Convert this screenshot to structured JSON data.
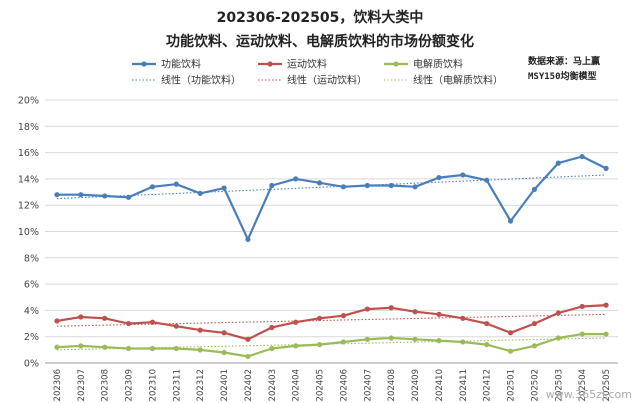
{
  "chart_data": {
    "type": "line",
    "title": "202306-202505，饮料大类中",
    "subtitle": "功能饮料、运动饮料、电解质饮料的市场份额变化",
    "xlabel": "",
    "ylabel": "",
    "ylim": [
      0,
      20
    ],
    "y_ticks": [
      "0%",
      "2%",
      "4%",
      "6%",
      "8%",
      "10%",
      "12%",
      "14%",
      "16%",
      "18%",
      "20%"
    ],
    "categories": [
      "202306",
      "202307",
      "202308",
      "202309",
      "202310",
      "202311",
      "202312",
      "202401",
      "202402",
      "202403",
      "202404",
      "202405",
      "202406",
      "202407",
      "202408",
      "202409",
      "202410",
      "202411",
      "202412",
      "202501",
      "202502",
      "202503",
      "202504",
      "202505"
    ],
    "series": [
      {
        "name": "功能饮料",
        "color": "#4a7ebb",
        "values": [
          12.8,
          12.8,
          12.7,
          12.6,
          13.4,
          13.6,
          12.9,
          13.3,
          9.4,
          13.5,
          14.0,
          13.7,
          13.4,
          13.5,
          13.5,
          13.4,
          14.1,
          14.3,
          13.9,
          10.8,
          13.2,
          15.2,
          15.7,
          14.8
        ]
      },
      {
        "name": "运动饮料",
        "color": "#c0504d",
        "values": [
          3.2,
          3.5,
          3.4,
          3.0,
          3.1,
          2.8,
          2.5,
          2.3,
          1.8,
          2.7,
          3.1,
          3.4,
          3.6,
          4.1,
          4.2,
          3.9,
          3.7,
          3.4,
          3.0,
          2.3,
          3.0,
          3.8,
          4.3,
          4.4
        ]
      },
      {
        "name": "电解质饮料",
        "color": "#9bbb59",
        "values": [
          1.2,
          1.3,
          1.2,
          1.1,
          1.1,
          1.1,
          1.0,
          0.8,
          0.5,
          1.1,
          1.3,
          1.4,
          1.6,
          1.8,
          1.9,
          1.8,
          1.7,
          1.6,
          1.4,
          0.9,
          1.3,
          1.9,
          2.2,
          2.2
        ]
      }
    ],
    "trendlines": [
      {
        "name": "线性（功能饮料）",
        "color": "#4a7ebb",
        "start": 12.5,
        "end": 14.3
      },
      {
        "name": "线性（运动饮料）",
        "color": "#c0504d",
        "start": 2.8,
        "end": 3.7
      },
      {
        "name": "线性（电解质饮料）",
        "color": "#9bbb59",
        "start": 1.0,
        "end": 1.9
      }
    ],
    "grid": true,
    "legend_position": "top"
  },
  "source_note": "数据来源：马上赢",
  "model_note": "MSY150均衡模型",
  "watermark": "www.365zj.com"
}
